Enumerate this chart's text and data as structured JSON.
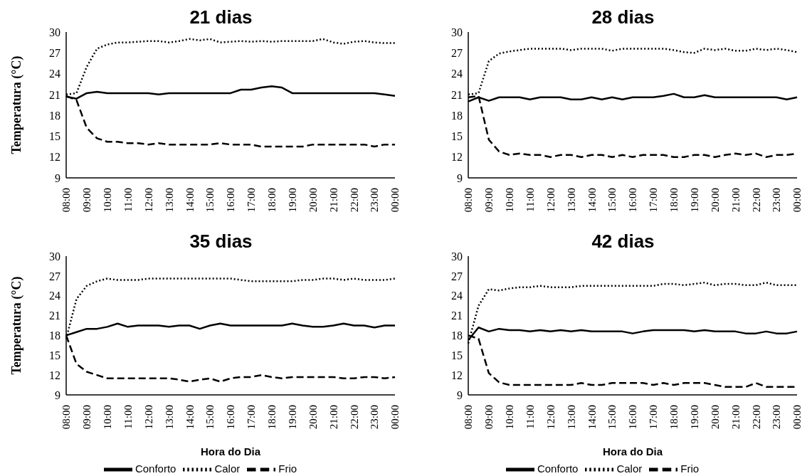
{
  "chart_data": [
    {
      "type": "line",
      "title": "21 dias",
      "ylabel": "Temperatura (°C)",
      "categories": [
        "08:00",
        null,
        "09:00",
        null,
        "10:00",
        null,
        "11:00",
        null,
        "12:00",
        null,
        "13:00",
        null,
        "14:00",
        null,
        "15:00",
        null,
        "16:00",
        null,
        "17:00",
        null,
        "18:00",
        null,
        "19:00",
        null,
        "20:00",
        null,
        "21:00",
        null,
        "22:00",
        null,
        "23:00",
        null,
        "00:00"
      ],
      "ylim": [
        9,
        30
      ],
      "yticks": [
        9,
        12,
        15,
        18,
        21,
        24,
        27,
        30
      ],
      "grid": false,
      "legend": false,
      "series": [
        {
          "color": "#000000",
          "line_style": "solid",
          "values": [
            20.7,
            20.4,
            21.2,
            21.4,
            21.2,
            21.2,
            21.2,
            21.2,
            21.2,
            21.0,
            21.2,
            21.2,
            21.2,
            21.2,
            21.2,
            21.2,
            21.2,
            21.7,
            21.7,
            22.0,
            22.2,
            22.0,
            21.2,
            21.2,
            21.2,
            21.2,
            21.2,
            21.2,
            21.2,
            21.2,
            21.2,
            21.0,
            20.8
          ]
        },
        {
          "color": "#000000",
          "line_style": "dotted",
          "values": [
            21.0,
            21.2,
            25.0,
            27.6,
            28.2,
            28.5,
            28.5,
            28.6,
            28.7,
            28.7,
            28.5,
            28.7,
            29.0,
            28.8,
            29.0,
            28.5,
            28.6,
            28.7,
            28.6,
            28.7,
            28.6,
            28.7,
            28.7,
            28.7,
            28.7,
            29.0,
            28.5,
            28.3,
            28.6,
            28.7,
            28.5,
            28.4,
            28.4
          ]
        },
        {
          "color": "#000000",
          "line_style": "dashed",
          "values": [
            20.8,
            20.2,
            16.2,
            14.7,
            14.2,
            14.2,
            14.0,
            14.0,
            13.8,
            14.0,
            13.8,
            13.8,
            13.8,
            13.8,
            13.8,
            14.0,
            13.8,
            13.8,
            13.8,
            13.5,
            13.5,
            13.5,
            13.5,
            13.5,
            13.8,
            13.8,
            13.8,
            13.8,
            13.8,
            13.8,
            13.5,
            13.8,
            13.8
          ]
        }
      ]
    },
    {
      "type": "line",
      "title": "28 dias",
      "categories": [
        "08:00",
        null,
        "09:00",
        null,
        "10:00",
        null,
        "11:00",
        null,
        "12:00",
        null,
        "13:00",
        null,
        "14:00",
        null,
        "15:00",
        null,
        "16:00",
        null,
        "17:00",
        null,
        "18:00",
        null,
        "19:00",
        null,
        "20:00",
        null,
        "21:00",
        null,
        "22:00",
        null,
        "23:00",
        null,
        "00:00"
      ],
      "ylim": [
        9,
        30
      ],
      "yticks": [
        9,
        12,
        15,
        18,
        21,
        24,
        27,
        30
      ],
      "grid": false,
      "legend": false,
      "series": [
        {
          "color": "#000000",
          "line_style": "solid",
          "values": [
            20.0,
            20.6,
            20.1,
            20.6,
            20.6,
            20.6,
            20.3,
            20.6,
            20.6,
            20.6,
            20.3,
            20.3,
            20.6,
            20.3,
            20.6,
            20.3,
            20.6,
            20.6,
            20.6,
            20.8,
            21.1,
            20.6,
            20.6,
            20.9,
            20.6,
            20.6,
            20.6,
            20.6,
            20.6,
            20.6,
            20.6,
            20.3,
            20.6
          ]
        },
        {
          "color": "#000000",
          "line_style": "dotted",
          "values": [
            21.0,
            21.2,
            25.8,
            26.9,
            27.2,
            27.4,
            27.6,
            27.6,
            27.6,
            27.6,
            27.4,
            27.6,
            27.6,
            27.6,
            27.3,
            27.6,
            27.6,
            27.6,
            27.6,
            27.6,
            27.4,
            27.1,
            27.0,
            27.6,
            27.4,
            27.6,
            27.3,
            27.3,
            27.6,
            27.4,
            27.6,
            27.4,
            27.1
          ]
        },
        {
          "color": "#000000",
          "line_style": "dashed",
          "values": [
            20.6,
            20.8,
            14.5,
            12.8,
            12.3,
            12.5,
            12.3,
            12.3,
            12.0,
            12.3,
            12.3,
            12.0,
            12.3,
            12.3,
            12.0,
            12.3,
            12.0,
            12.3,
            12.3,
            12.3,
            12.0,
            12.0,
            12.3,
            12.3,
            12.0,
            12.3,
            12.5,
            12.3,
            12.5,
            12.0,
            12.3,
            12.3,
            12.5
          ]
        }
      ]
    },
    {
      "type": "line",
      "title": "35 dias",
      "xlabel": "Hora do Dia",
      "ylabel": "Temperatura (°C)",
      "categories": [
        "08:00",
        null,
        "09:00",
        null,
        "10:00",
        null,
        "11:00",
        null,
        "12:00",
        null,
        "13:00",
        null,
        "14:00",
        null,
        "15:00",
        null,
        "16:00",
        null,
        "17:00",
        null,
        "18:00",
        null,
        "19:00",
        null,
        "20:00",
        null,
        "21:00",
        null,
        "22:00",
        null,
        "23:00",
        null,
        "00:00"
      ],
      "ylim": [
        9,
        30
      ],
      "yticks": [
        9,
        12,
        15,
        18,
        21,
        24,
        27,
        30
      ],
      "grid": false,
      "legend": "bottom",
      "series": [
        {
          "name": "Conforto",
          "color": "#000000",
          "line_style": "solid",
          "values": [
            18.0,
            18.5,
            19.0,
            19.0,
            19.3,
            19.8,
            19.3,
            19.5,
            19.5,
            19.5,
            19.3,
            19.5,
            19.5,
            19.0,
            19.5,
            19.8,
            19.5,
            19.5,
            19.5,
            19.5,
            19.5,
            19.5,
            19.8,
            19.5,
            19.3,
            19.3,
            19.5,
            19.8,
            19.5,
            19.5,
            19.2,
            19.5,
            19.5
          ]
        },
        {
          "name": "Calor",
          "color": "#000000",
          "line_style": "dotted",
          "values": [
            17.5,
            23.5,
            25.5,
            26.2,
            26.6,
            26.4,
            26.4,
            26.4,
            26.6,
            26.6,
            26.6,
            26.6,
            26.6,
            26.6,
            26.6,
            26.6,
            26.6,
            26.4,
            26.2,
            26.2,
            26.2,
            26.2,
            26.2,
            26.4,
            26.4,
            26.6,
            26.6,
            26.4,
            26.6,
            26.4,
            26.4,
            26.4,
            26.6
          ]
        },
        {
          "name": "Frio",
          "color": "#000000",
          "line_style": "dashed",
          "values": [
            18.0,
            13.7,
            12.5,
            12.0,
            11.5,
            11.5,
            11.5,
            11.5,
            11.5,
            11.5,
            11.5,
            11.3,
            11.0,
            11.3,
            11.5,
            11.0,
            11.5,
            11.7,
            11.7,
            12.0,
            11.7,
            11.5,
            11.7,
            11.7,
            11.7,
            11.7,
            11.7,
            11.5,
            11.5,
            11.7,
            11.7,
            11.5,
            11.7
          ]
        }
      ]
    },
    {
      "type": "line",
      "title": "42 dias",
      "xlabel": "Hora do Dia",
      "categories": [
        "08:00",
        null,
        "09:00",
        null,
        "10:00",
        null,
        "11:00",
        null,
        "12:00",
        null,
        "13:00",
        null,
        "14:00",
        null,
        "15:00",
        null,
        "16:00",
        null,
        "17:00",
        null,
        "18:00",
        null,
        "19:00",
        null,
        "20:00",
        null,
        "21:00",
        null,
        "22:00",
        null,
        "23:00",
        null,
        "00:00"
      ],
      "ylim": [
        9,
        30
      ],
      "yticks": [
        9,
        12,
        15,
        18,
        21,
        24,
        27,
        30
      ],
      "grid": false,
      "legend": "bottom",
      "series": [
        {
          "name": "Conforto",
          "color": "#000000",
          "line_style": "solid",
          "values": [
            17.3,
            19.2,
            18.6,
            19.0,
            18.8,
            18.8,
            18.6,
            18.8,
            18.6,
            18.8,
            18.6,
            18.8,
            18.6,
            18.6,
            18.6,
            18.6,
            18.3,
            18.6,
            18.8,
            18.8,
            18.8,
            18.8,
            18.6,
            18.8,
            18.6,
            18.6,
            18.6,
            18.3,
            18.3,
            18.6,
            18.3,
            18.3,
            18.6
          ]
        },
        {
          "name": "Calor",
          "color": "#000000",
          "line_style": "dotted",
          "values": [
            16.8,
            22.5,
            25.0,
            24.8,
            25.1,
            25.3,
            25.3,
            25.5,
            25.3,
            25.3,
            25.3,
            25.5,
            25.5,
            25.5,
            25.5,
            25.5,
            25.5,
            25.5,
            25.5,
            25.8,
            25.8,
            25.6,
            25.8,
            26.0,
            25.6,
            25.8,
            25.8,
            25.6,
            25.6,
            26.0,
            25.6,
            25.6,
            25.6
          ]
        },
        {
          "name": "Frio",
          "color": "#000000",
          "line_style": "dashed",
          "values": [
            18.0,
            17.5,
            12.3,
            10.9,
            10.5,
            10.5,
            10.5,
            10.5,
            10.5,
            10.5,
            10.5,
            10.8,
            10.5,
            10.5,
            10.8,
            10.8,
            10.8,
            10.8,
            10.5,
            10.8,
            10.5,
            10.8,
            10.8,
            10.8,
            10.5,
            10.2,
            10.2,
            10.2,
            10.8,
            10.2,
            10.2,
            10.2,
            10.2
          ]
        }
      ]
    }
  ]
}
